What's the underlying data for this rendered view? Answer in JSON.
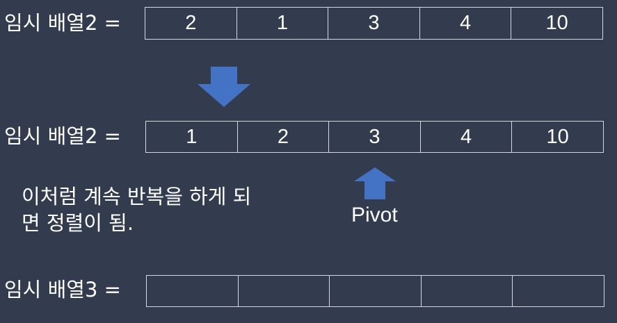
{
  "rows": [
    {
      "label": "임시 배열2 =",
      "cells": [
        "2",
        "1",
        "3",
        "4",
        "10"
      ]
    },
    {
      "label": "임시 배열2 =",
      "cells": [
        "1",
        "2",
        "3",
        "4",
        "10"
      ]
    },
    {
      "label": "임시 배열3 =",
      "cells": [
        "",
        "",
        "",
        "",
        ""
      ]
    }
  ],
  "note": {
    "line1": "이처럼 계속 반복을 하게 되",
    "line2": "면 정렬이 됨."
  },
  "pivot": {
    "label": "Pivot"
  },
  "colors": {
    "background": "#333c4e",
    "arrow": "#4472c4",
    "cell_border": "#d6d9de",
    "text": "#ffffff"
  }
}
